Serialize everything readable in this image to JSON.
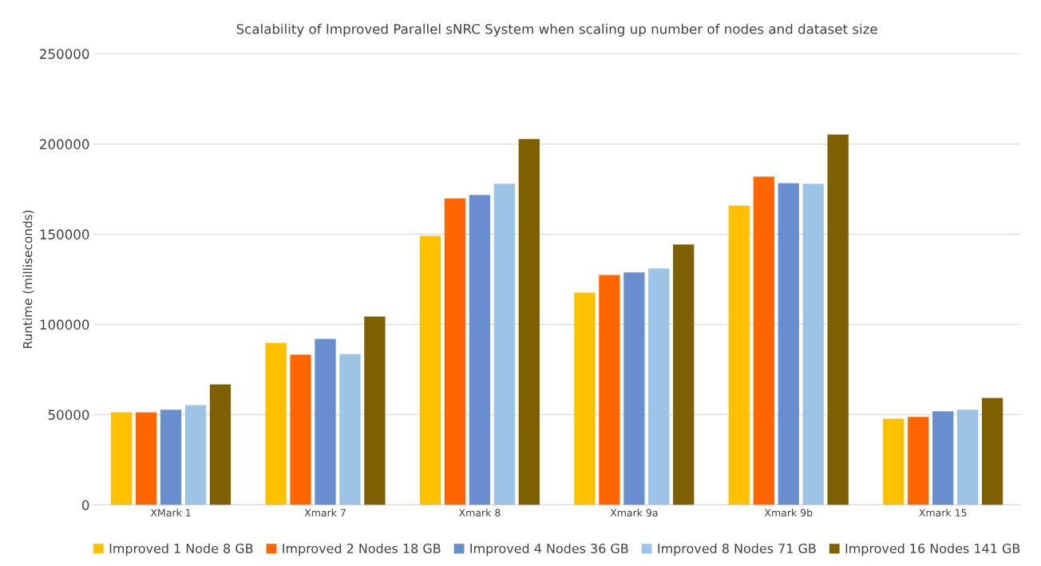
{
  "chart_data": {
    "type": "bar",
    "title": "Scalability of Improved Parallel sNRC System when scaling up number of nodes and dataset size",
    "ylabel": "Runtime (milliseconds)",
    "categories": [
      "XMark 1",
      "Xmark 7",
      "Xmark 8",
      "Xmark 9a",
      "Xmark 9b",
      "Xmark 15"
    ],
    "series": [
      {
        "name": "Improved 1 Node 8 GB",
        "color": "#ffc000",
        "values": [
          51300,
          89800,
          149100,
          117700,
          165900,
          47800
        ]
      },
      {
        "name": "Improved 2 Nodes 18 GB",
        "color": "#ff6600",
        "values": [
          51300,
          83200,
          169900,
          127400,
          181900,
          48700
        ]
      },
      {
        "name": "Improved 4 Nodes 36 GB",
        "color": "#698ed0",
        "values": [
          52700,
          92000,
          171700,
          128800,
          178300,
          51800
        ]
      },
      {
        "name": "Improved 8 Nodes 71 GB",
        "color": "#9dc3e6",
        "values": [
          55300,
          83600,
          177900,
          131000,
          177900,
          52700
        ]
      },
      {
        "name": "Improved 16 Nodes 141 GB",
        "color": "#7f6000",
        "values": [
          66800,
          104400,
          202700,
          144300,
          205300,
          59300
        ]
      }
    ],
    "ylim": [
      0,
      250000
    ],
    "yticks": [
      0,
      50000,
      100000,
      150000,
      200000,
      250000
    ],
    "grid": "y",
    "legend": "bottom"
  }
}
